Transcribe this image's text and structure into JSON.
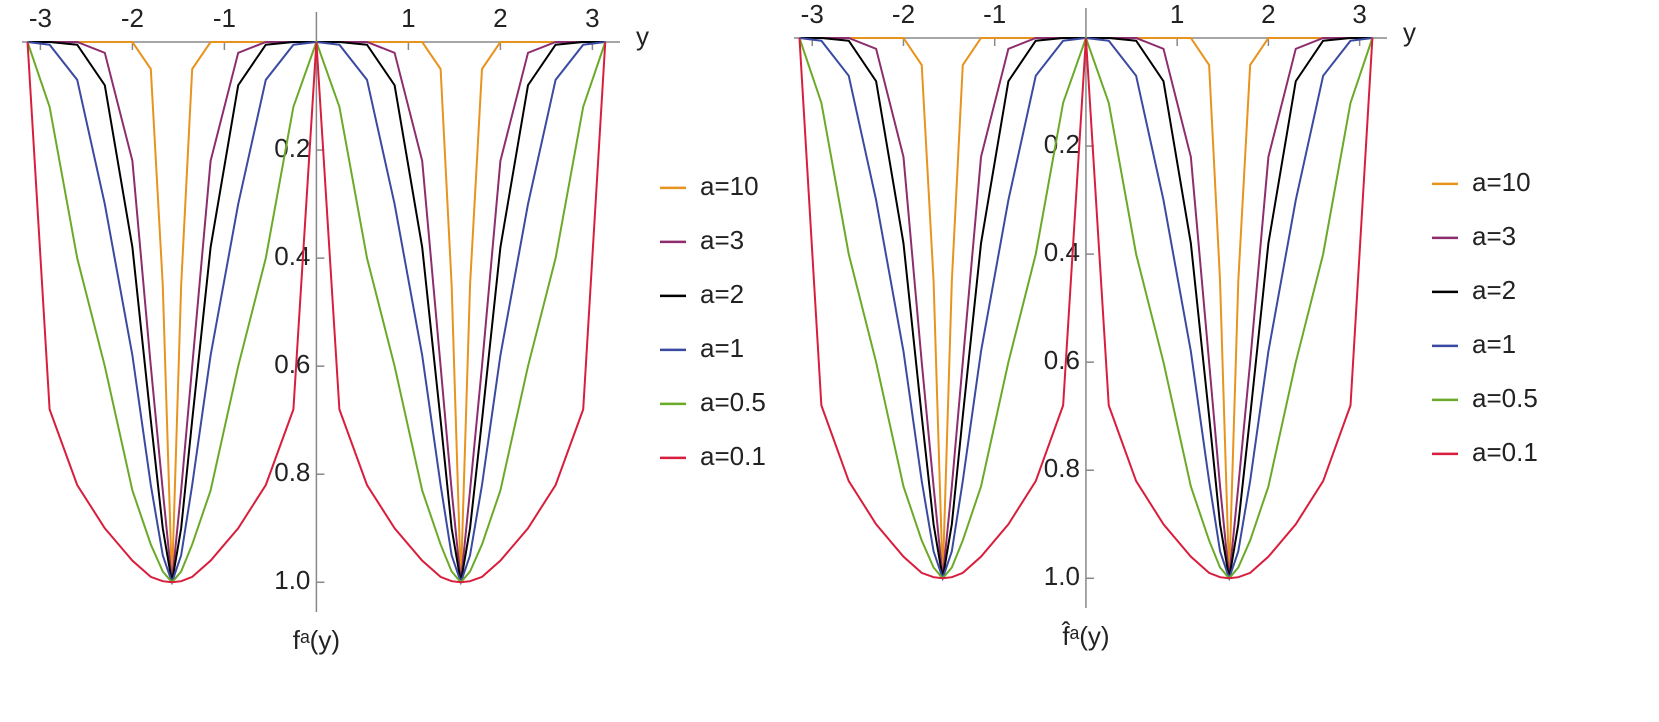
{
  "chart_data": [
    {
      "type": "line",
      "x_label": "y",
      "y_label": "fᵃ(y)",
      "x": [
        -3.14,
        -2.9,
        -2.6,
        -2.3,
        -2.0,
        -1.8,
        -1.67,
        -1.57,
        -1.47,
        -1.35,
        -1.15,
        -0.85,
        -0.55,
        -0.25,
        0,
        0.25,
        0.55,
        0.85,
        1.15,
        1.35,
        1.47,
        1.57,
        1.67,
        1.8,
        2.0,
        2.3,
        2.6,
        2.9,
        3.14
      ],
      "series": [
        {
          "name": "a=10",
          "color": "#e8931e",
          "values": [
            0,
            0,
            0,
            0,
            0,
            0.05,
            0.45,
            1,
            0.45,
            0.05,
            0,
            0,
            0,
            0,
            0,
            0,
            0,
            0,
            0,
            0.05,
            0.45,
            1,
            0.45,
            0.05,
            0,
            0,
            0,
            0,
            0
          ]
        },
        {
          "name": "a=3",
          "color": "#8e2d6e",
          "values": [
            0,
            0,
            0,
            0.02,
            0.22,
            0.6,
            0.83,
            1,
            0.83,
            0.6,
            0.22,
            0.02,
            0,
            0,
            0,
            0,
            0,
            0.02,
            0.22,
            0.6,
            0.83,
            1,
            0.83,
            0.6,
            0.22,
            0.02,
            0,
            0,
            0
          ]
        },
        {
          "name": "a=2",
          "color": "#000000",
          "values": [
            0,
            0,
            0.005,
            0.08,
            0.38,
            0.7,
            0.9,
            1,
            0.9,
            0.7,
            0.38,
            0.08,
            0.005,
            0,
            0,
            0,
            0.005,
            0.08,
            0.38,
            0.7,
            0.9,
            1,
            0.9,
            0.7,
            0.38,
            0.08,
            0.005,
            0,
            0
          ]
        },
        {
          "name": "a=1",
          "color": "#3a4aa0",
          "values": [
            0,
            0.005,
            0.07,
            0.3,
            0.58,
            0.82,
            0.95,
            1,
            0.95,
            0.82,
            0.58,
            0.3,
            0.07,
            0.005,
            0,
            0.005,
            0.07,
            0.3,
            0.58,
            0.82,
            0.95,
            1,
            0.95,
            0.82,
            0.58,
            0.3,
            0.07,
            0.005,
            0
          ]
        },
        {
          "name": "a=0.5",
          "color": "#6aaa28",
          "values": [
            0,
            0.12,
            0.4,
            0.6,
            0.83,
            0.93,
            0.98,
            1,
            0.98,
            0.93,
            0.83,
            0.6,
            0.4,
            0.12,
            0,
            0.12,
            0.4,
            0.6,
            0.83,
            0.93,
            0.98,
            1,
            0.98,
            0.93,
            0.83,
            0.6,
            0.4,
            0.12,
            0
          ]
        },
        {
          "name": "a=0.1",
          "color": "#d81e3c",
          "values": [
            0,
            0.68,
            0.82,
            0.9,
            0.96,
            0.99,
            0.998,
            1,
            0.998,
            0.99,
            0.96,
            0.9,
            0.82,
            0.68,
            0,
            0.68,
            0.82,
            0.9,
            0.96,
            0.99,
            0.998,
            1,
            0.998,
            0.99,
            0.96,
            0.9,
            0.82,
            0.68,
            0
          ]
        }
      ],
      "xlim": [
        -3.2,
        3.3
      ],
      "ylim": [
        0,
        1.055
      ],
      "xticks": [
        -3,
        -2,
        -1,
        1,
        2,
        3
      ],
      "yticks": [
        0.2,
        0.4,
        0.6,
        0.8,
        {
          "value": 1,
          "label": "1.0"
        }
      ]
    },
    {
      "type": "line",
      "x_label": "y",
      "y_label": "f̂ᵃ(y)",
      "x": [
        -3.14,
        -2.9,
        -2.6,
        -2.3,
        -2.0,
        -1.8,
        -1.67,
        -1.57,
        -1.47,
        -1.35,
        -1.15,
        -0.85,
        -0.55,
        -0.25,
        0,
        0.25,
        0.55,
        0.85,
        1.15,
        1.35,
        1.47,
        1.57,
        1.67,
        1.8,
        2.0,
        2.3,
        2.6,
        2.9,
        3.14
      ],
      "series": [
        {
          "name": "a=10",
          "color": "#e8931e",
          "values": [
            0,
            0,
            0,
            0,
            0,
            0.05,
            0.45,
            1,
            0.45,
            0.05,
            0,
            0,
            0,
            0,
            0,
            0,
            0,
            0,
            0,
            0.05,
            0.45,
            1,
            0.45,
            0.05,
            0,
            0,
            0,
            0,
            0
          ]
        },
        {
          "name": "a=3",
          "color": "#8e2d6e",
          "values": [
            0,
            0,
            0,
            0.02,
            0.22,
            0.6,
            0.83,
            1,
            0.83,
            0.6,
            0.22,
            0.02,
            0,
            0,
            0,
            0,
            0,
            0.02,
            0.22,
            0.6,
            0.83,
            1,
            0.83,
            0.6,
            0.22,
            0.02,
            0,
            0,
            0
          ]
        },
        {
          "name": "a=2",
          "color": "#000000",
          "values": [
            0,
            0,
            0.005,
            0.08,
            0.38,
            0.7,
            0.9,
            1,
            0.9,
            0.7,
            0.38,
            0.08,
            0.005,
            0,
            0,
            0,
            0.005,
            0.08,
            0.38,
            0.7,
            0.9,
            1,
            0.9,
            0.7,
            0.38,
            0.08,
            0.005,
            0,
            0
          ]
        },
        {
          "name": "a=1",
          "color": "#3a4aa0",
          "values": [
            0,
            0.005,
            0.07,
            0.3,
            0.58,
            0.82,
            0.95,
            1,
            0.95,
            0.82,
            0.58,
            0.3,
            0.07,
            0.005,
            0,
            0.005,
            0.07,
            0.3,
            0.58,
            0.82,
            0.95,
            1,
            0.95,
            0.82,
            0.58,
            0.3,
            0.07,
            0.005,
            0
          ]
        },
        {
          "name": "a=0.5",
          "color": "#6aaa28",
          "values": [
            0,
            0.12,
            0.4,
            0.6,
            0.83,
            0.93,
            0.98,
            1,
            0.98,
            0.93,
            0.83,
            0.6,
            0.4,
            0.12,
            0,
            0.12,
            0.4,
            0.6,
            0.83,
            0.93,
            0.98,
            1,
            0.98,
            0.93,
            0.83,
            0.6,
            0.4,
            0.12,
            0
          ]
        },
        {
          "name": "a=0.1",
          "color": "#d81e3c",
          "values": [
            0,
            0.68,
            0.82,
            0.9,
            0.96,
            0.99,
            0.998,
            1,
            0.998,
            0.99,
            0.96,
            0.9,
            0.82,
            0.68,
            0,
            0.68,
            0.82,
            0.9,
            0.96,
            0.99,
            0.998,
            1,
            0.998,
            0.99,
            0.96,
            0.9,
            0.82,
            0.68,
            0
          ]
        }
      ],
      "xlim": [
        -3.2,
        3.3
      ],
      "ylim": [
        0,
        1.055
      ],
      "xticks": [
        -3,
        -2,
        -1,
        1,
        2,
        3
      ],
      "yticks": [
        0.2,
        0.4,
        0.6,
        0.8,
        {
          "value": 1,
          "label": "1.0"
        }
      ]
    }
  ]
}
